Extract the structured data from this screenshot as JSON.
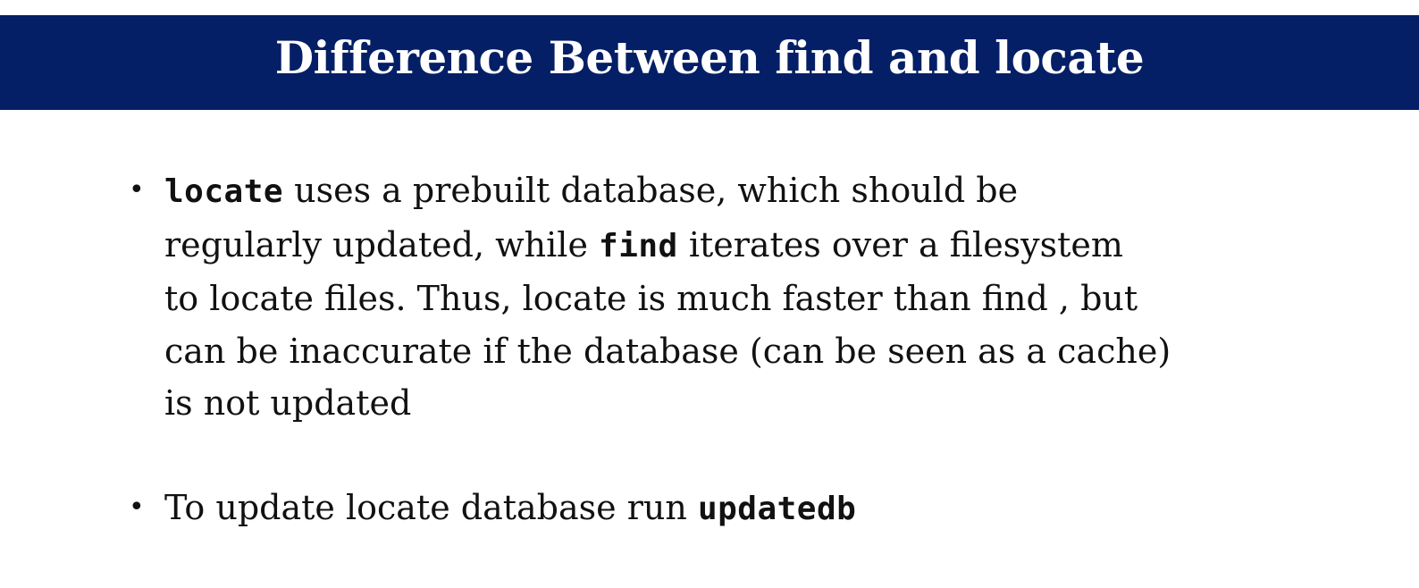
{
  "slide": {
    "title": "Difference Between find and locate",
    "bullet1": {
      "line1": {
        "code1": "locate",
        "text1": " uses a prebuilt database, which should be"
      },
      "line2": {
        "text1": "regularly updated, while ",
        "code1": "find",
        "text2": " iterates over a filesystem"
      },
      "line3": "to locate files. Thus, locate is much faster than find , but",
      "line4": "can be inaccurate if the database (can be seen as a cache)",
      "line5": "is not updated"
    },
    "bullet2": {
      "text1": "To update locate database run ",
      "code1": "updatedb"
    },
    "bullet_glyph": "•"
  },
  "colors": {
    "title_bar": "#041f66",
    "title_text": "#ffffff",
    "body_text": "#111111",
    "background": "#ffffff"
  }
}
